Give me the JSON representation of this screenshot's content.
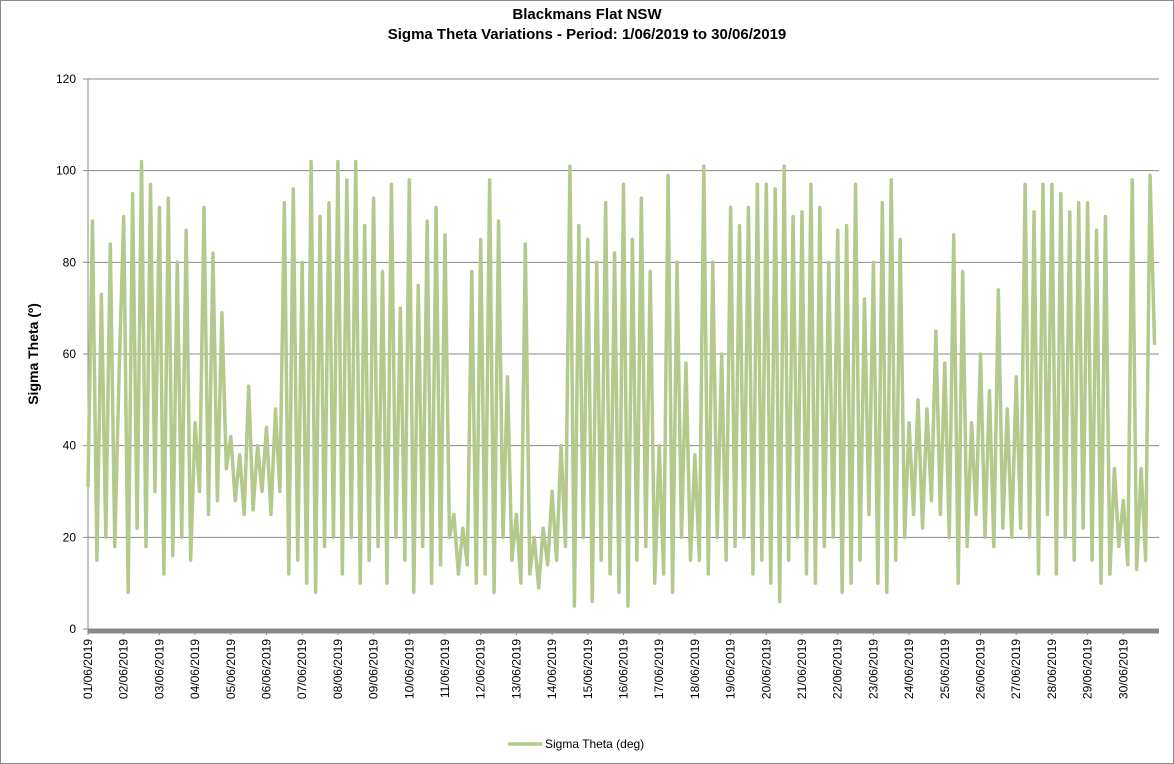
{
  "chart_data": {
    "type": "line",
    "title": "Blackmans Flat NSW",
    "subtitle": "Sigma Theta Variations - Period: 1/06/2019 to 30/06/2019",
    "y_label": "Sigma Theta (º)",
    "ylim": [
      0,
      120
    ],
    "yticks": [
      0,
      20,
      40,
      60,
      80,
      100,
      120
    ],
    "grid": true,
    "legend": "bottom",
    "categories": [
      "01/06/2019",
      null,
      null,
      null,
      null,
      null,
      null,
      null,
      "02/06/2019",
      null,
      null,
      null,
      null,
      null,
      null,
      null,
      "03/06/2019",
      null,
      null,
      null,
      null,
      null,
      null,
      null,
      "04/06/2019",
      null,
      null,
      null,
      null,
      null,
      null,
      null,
      "05/06/2019",
      null,
      null,
      null,
      null,
      null,
      null,
      null,
      "06/06/2019",
      null,
      null,
      null,
      null,
      null,
      null,
      null,
      "07/06/2019",
      null,
      null,
      null,
      null,
      null,
      null,
      null,
      "08/06/2019",
      null,
      null,
      null,
      null,
      null,
      null,
      null,
      "09/06/2019",
      null,
      null,
      null,
      null,
      null,
      null,
      null,
      "10/06/2019",
      null,
      null,
      null,
      null,
      null,
      null,
      null,
      "11/06/2019",
      null,
      null,
      null,
      null,
      null,
      null,
      null,
      "12/06/2019",
      null,
      null,
      null,
      null,
      null,
      null,
      null,
      "13/06/2019",
      null,
      null,
      null,
      null,
      null,
      null,
      null,
      "14/06/2019",
      null,
      null,
      null,
      null,
      null,
      null,
      null,
      "15/06/2019",
      null,
      null,
      null,
      null,
      null,
      null,
      null,
      "16/06/2019",
      null,
      null,
      null,
      null,
      null,
      null,
      null,
      "17/06/2019",
      null,
      null,
      null,
      null,
      null,
      null,
      null,
      "18/06/2019",
      null,
      null,
      null,
      null,
      null,
      null,
      null,
      "19/06/2019",
      null,
      null,
      null,
      null,
      null,
      null,
      null,
      "20/06/2019",
      null,
      null,
      null,
      null,
      null,
      null,
      null,
      "21/06/2019",
      null,
      null,
      null,
      null,
      null,
      null,
      null,
      "22/06/2019",
      null,
      null,
      null,
      null,
      null,
      null,
      null,
      "23/06/2019",
      null,
      null,
      null,
      null,
      null,
      null,
      null,
      "24/06/2019",
      null,
      null,
      null,
      null,
      null,
      null,
      null,
      "25/06/2019",
      null,
      null,
      null,
      null,
      null,
      null,
      null,
      "26/06/2019",
      null,
      null,
      null,
      null,
      null,
      null,
      null,
      "27/06/2019",
      null,
      null,
      null,
      null,
      null,
      null,
      null,
      "28/06/2019",
      null,
      null,
      null,
      null,
      null,
      null,
      null,
      "29/06/2019",
      null,
      null,
      null,
      null,
      null,
      null,
      null,
      "30/06/2019",
      null,
      null,
      null,
      null,
      null,
      null,
      null
    ],
    "series": [
      {
        "name": "Sigma Theta (deg)",
        "color": "#b4c98c",
        "values": [
          31,
          89,
          15,
          73,
          20,
          84,
          18,
          57,
          90,
          8,
          95,
          22,
          102,
          18,
          97,
          30,
          92,
          12,
          94,
          16,
          80,
          20,
          87,
          15,
          45,
          30,
          92,
          25,
          82,
          28,
          69,
          35,
          42,
          28,
          38,
          25,
          53,
          26,
          40,
          30,
          44,
          25,
          48,
          30,
          93,
          12,
          96,
          15,
          80,
          10,
          102,
          8,
          90,
          18,
          93,
          20,
          102,
          12,
          98,
          20,
          102,
          10,
          88,
          15,
          94,
          18,
          78,
          10,
          97,
          20,
          70,
          15,
          98,
          8,
          75,
          18,
          89,
          10,
          92,
          14,
          86,
          20,
          25,
          12,
          22,
          14,
          78,
          10,
          85,
          12,
          98,
          8,
          89,
          20,
          55,
          15,
          25,
          10,
          84,
          12,
          20,
          9,
          22,
          14,
          30,
          15,
          40,
          18,
          101,
          5,
          88,
          20,
          85,
          6,
          80,
          15,
          93,
          12,
          82,
          8,
          97,
          5,
          85,
          15,
          94,
          18,
          78,
          10,
          40,
          12,
          99,
          8,
          80,
          20,
          58,
          15,
          38,
          15,
          101,
          12,
          80,
          20,
          60,
          15,
          92,
          18,
          88,
          20,
          92,
          12,
          97,
          15,
          97,
          10,
          96,
          6,
          101,
          15,
          90,
          20,
          91,
          12,
          97,
          10,
          92,
          18,
          80,
          20,
          87,
          8,
          88,
          10,
          97,
          15,
          72,
          25,
          80,
          10,
          93,
          8,
          98,
          15,
          85,
          20,
          45,
          25,
          50,
          22,
          48,
          28,
          65,
          25,
          58,
          20,
          86,
          10,
          78,
          18,
          45,
          25,
          60,
          20,
          52,
          18,
          74,
          22,
          48,
          20,
          55,
          22,
          97,
          20,
          91,
          12,
          97,
          25,
          97,
          12,
          95,
          20,
          91,
          15,
          93,
          22,
          93,
          15,
          87,
          10,
          90,
          12,
          35,
          18,
          28,
          14,
          98,
          13,
          35,
          15,
          99,
          62
        ]
      }
    ]
  }
}
